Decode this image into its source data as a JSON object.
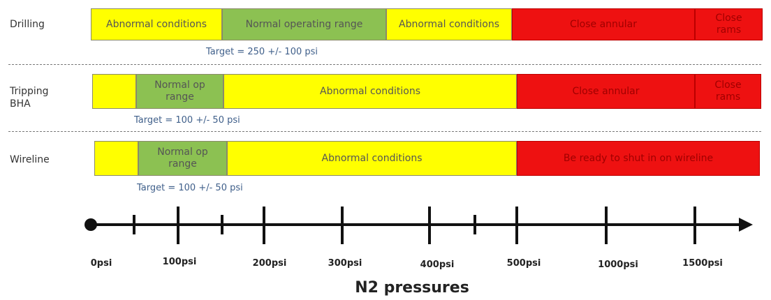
{
  "rows": [
    {
      "label": "Drilling",
      "segments": [
        "Abnormal conditions",
        "Normal operating range",
        "Abnormal conditions",
        "Close annular",
        "Close rams"
      ],
      "target": "Target = 250 +/- 100 psi"
    },
    {
      "label": "Tripping BHA",
      "segments": [
        "Normal op range",
        "Abnormal conditions",
        "Close annular",
        "Close rams"
      ],
      "target": "Target = 100 +/- 50 psi"
    },
    {
      "label": "Wireline",
      "segments": [
        "Normal op range",
        "Abnormal conditions",
        "Be ready to shut in on wireline"
      ],
      "target": "Target = 100 +/- 50 psi"
    }
  ],
  "axis": {
    "labels": [
      "0psi",
      "100psi",
      "200psi",
      "300psi",
      "400psi",
      "500psi",
      "1000psi",
      "1500psi"
    ],
    "title": "N2 pressures"
  }
}
